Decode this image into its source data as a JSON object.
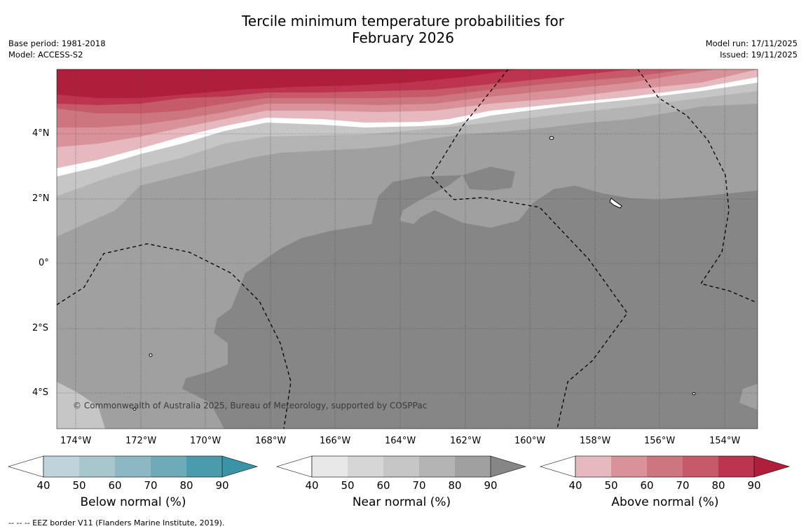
{
  "title_line1": "Tercile minimum temperature probabilities for",
  "title_line2": "February 2026",
  "base_period": "Base period: 1981-2018",
  "model": "Model: ACCESS-S2",
  "model_run": "Model run: 17/11/2025",
  "issued": "Issued: 19/11/2025",
  "copyright": "© Commonwealth of Australia 2025, Bureau of Meteorology, supported by COSPPac",
  "footer": "--  --  -- EEZ border V11 (Flanders Marine Institute, 2019).",
  "lon_ticks": [
    "174°W",
    "172°W",
    "170°W",
    "168°W",
    "166°W",
    "164°W",
    "162°W",
    "160°W",
    "158°W",
    "156°W",
    "154°W"
  ],
  "lat_ticks": [
    "4°N",
    "2°N",
    "0°",
    "2°S",
    "4°S"
  ],
  "colorbars": [
    {
      "label": "Below normal (%)",
      "ticks": [
        "40",
        "50",
        "60",
        "70",
        "80",
        "90"
      ],
      "colors": [
        "#bed3da",
        "#a8c7cc",
        "#8cb8c4",
        "#6eabb9",
        "#4a9bab",
        "#3a93a6"
      ]
    },
    {
      "label": "Near normal (%)",
      "ticks": [
        "40",
        "50",
        "60",
        "70",
        "80",
        "90"
      ],
      "colors": [
        "#e8e8e8",
        "#d6d6d6",
        "#c6c6c6",
        "#b4b4b4",
        "#a0a0a0",
        "#868686"
      ]
    },
    {
      "label": "Above normal (%)",
      "ticks": [
        "40",
        "50",
        "60",
        "70",
        "80",
        "90"
      ],
      "colors": [
        "#e6b9be",
        "#d99299",
        "#ce7680",
        "#c65a69",
        "#bd3450",
        "#af1f3b"
      ]
    }
  ]
}
